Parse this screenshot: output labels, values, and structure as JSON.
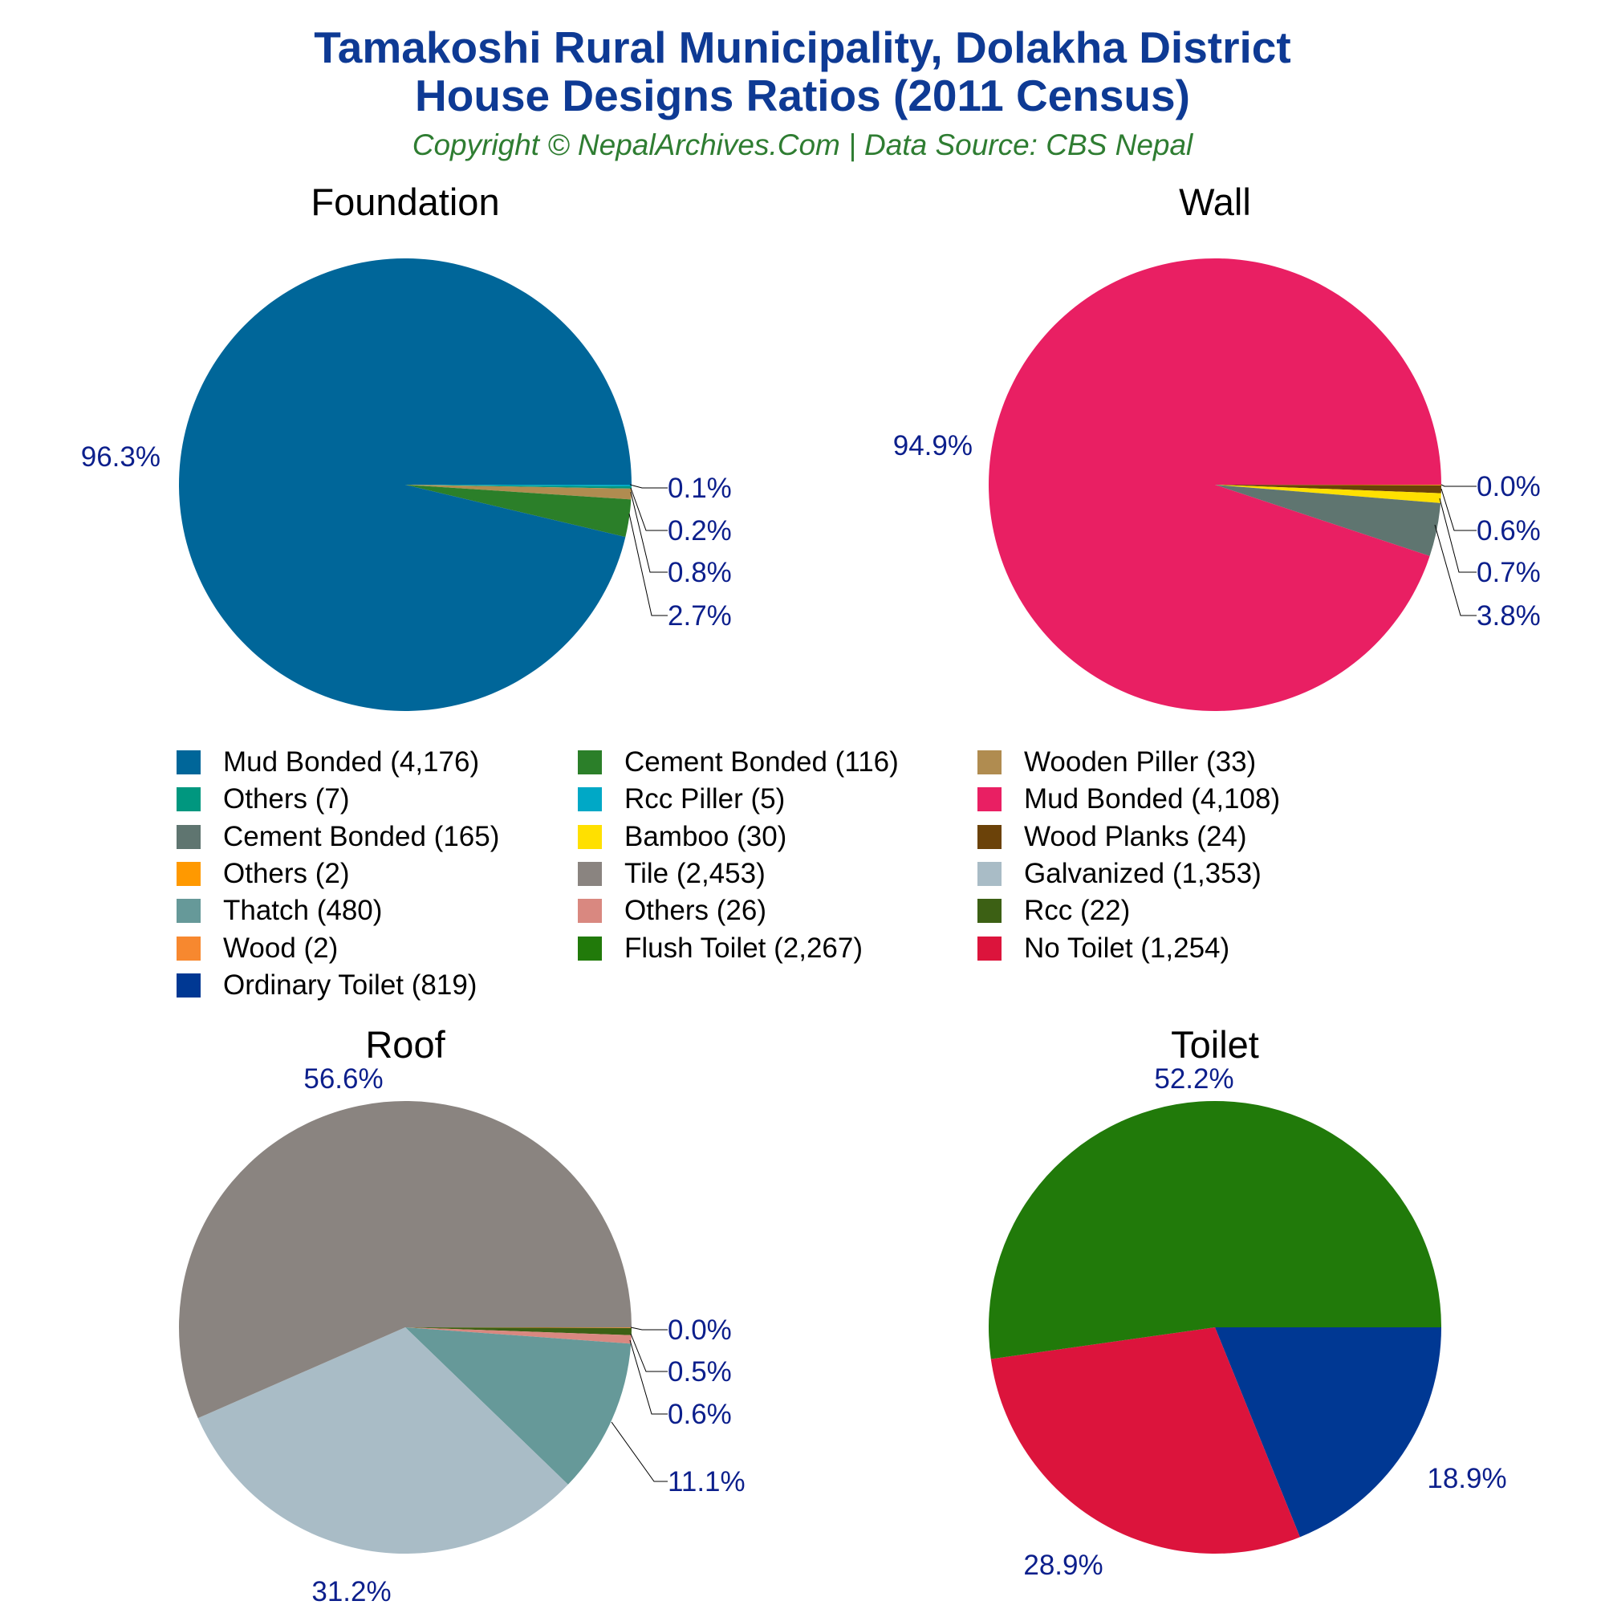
{
  "header": {
    "title_line1": "Tamakoshi Rural Municipality, Dolakha District",
    "title_line2": "House Designs Ratios (2011 Census)",
    "subtitle": "Copyright © NepalArchives.Com | Data Source: CBS Nepal"
  },
  "colors": {
    "title": "#0e3a94",
    "subtitle": "#2f7d32",
    "percent_labels": "#0c1f8c"
  },
  "chart_data": [
    {
      "type": "pie",
      "title": "Foundation",
      "start_angle_deg": 0,
      "direction": "clockwise",
      "slices": [
        {
          "label": "Rcc Piller",
          "value": 5,
          "percent_label": "0.1%",
          "color": "#00a8c6"
        },
        {
          "label": "Others",
          "value": 7,
          "percent_label": "0.2%",
          "color": "#00977f"
        },
        {
          "label": "Wooden Piller",
          "value": 33,
          "percent_label": "0.8%",
          "color": "#b08c50"
        },
        {
          "label": "Cement Bonded",
          "value": 116,
          "percent_label": "2.7%",
          "color": "#2b7f29"
        },
        {
          "label": "Mud Bonded",
          "value": 4176,
          "percent_label": "96.3%",
          "color": "#006699"
        }
      ]
    },
    {
      "type": "pie",
      "title": "Wall",
      "start_angle_deg": 0,
      "direction": "clockwise",
      "slices": [
        {
          "label": "Others",
          "value": 2,
          "percent_label": "0.0%",
          "color": "#ff9900"
        },
        {
          "label": "Wood Planks",
          "value": 24,
          "percent_label": "0.6%",
          "color": "#6b4209"
        },
        {
          "label": "Bamboo",
          "value": 30,
          "percent_label": "0.7%",
          "color": "#ffe000"
        },
        {
          "label": "Cement Bonded",
          "value": 165,
          "percent_label": "3.8%",
          "color": "#5f7570"
        },
        {
          "label": "Mud Bonded",
          "value": 4108,
          "percent_label": "94.9%",
          "color": "#e91f63"
        }
      ]
    },
    {
      "type": "pie",
      "title": "Roof",
      "start_angle_deg": 0,
      "direction": "clockwise",
      "slices": [
        {
          "label": "Wood",
          "value": 2,
          "percent_label": "0.0%",
          "color": "#f7882f"
        },
        {
          "label": "Rcc",
          "value": 22,
          "percent_label": "0.5%",
          "color": "#3c6014"
        },
        {
          "label": "Others",
          "value": 26,
          "percent_label": "0.6%",
          "color": "#d98880"
        },
        {
          "label": "Thatch",
          "value": 480,
          "percent_label": "11.1%",
          "color": "#669999"
        },
        {
          "label": "Galvanized",
          "value": 1353,
          "percent_label": "31.2%",
          "color": "#a9bcc6"
        },
        {
          "label": "Tile",
          "value": 2453,
          "percent_label": "56.6%",
          "color": "#8a8480"
        }
      ]
    },
    {
      "type": "pie",
      "title": "Toilet",
      "start_angle_deg": 0,
      "direction": "clockwise",
      "slices": [
        {
          "label": "Ordinary Toilet",
          "value": 819,
          "percent_label": "18.9%",
          "color": "#003893"
        },
        {
          "label": "No Toilet",
          "value": 1254,
          "percent_label": "28.9%",
          "color": "#dc143c"
        },
        {
          "label": "Flush Toilet",
          "value": 2267,
          "percent_label": "52.2%",
          "color": "#217a0a"
        }
      ]
    }
  ],
  "legend": {
    "items": [
      {
        "text": "Mud Bonded (4,176)",
        "color": "#006699"
      },
      {
        "text": "Cement Bonded (116)",
        "color": "#2b7f29"
      },
      {
        "text": "Wooden Piller (33)",
        "color": "#b08c50"
      },
      {
        "text": "Others (7)",
        "color": "#00977f"
      },
      {
        "text": "Rcc Piller (5)",
        "color": "#00a8c6"
      },
      {
        "text": "Mud Bonded (4,108)",
        "color": "#e91f63"
      },
      {
        "text": "Cement Bonded (165)",
        "color": "#5f7570"
      },
      {
        "text": "Bamboo (30)",
        "color": "#ffe000"
      },
      {
        "text": "Wood Planks (24)",
        "color": "#6b4209"
      },
      {
        "text": "Others (2)",
        "color": "#ff9900"
      },
      {
        "text": "Tile (2,453)",
        "color": "#8a8480"
      },
      {
        "text": "Galvanized (1,353)",
        "color": "#a9bcc6"
      },
      {
        "text": "Thatch (480)",
        "color": "#669999"
      },
      {
        "text": "Others (26)",
        "color": "#d98880"
      },
      {
        "text": "Rcc (22)",
        "color": "#3c6014"
      },
      {
        "text": "Wood (2)",
        "color": "#f7882f"
      },
      {
        "text": "Flush Toilet (2,267)",
        "color": "#217a0a"
      },
      {
        "text": "No Toilet (1,254)",
        "color": "#dc143c"
      },
      {
        "text": "Ordinary Toilet (819)",
        "color": "#003893"
      }
    ]
  }
}
